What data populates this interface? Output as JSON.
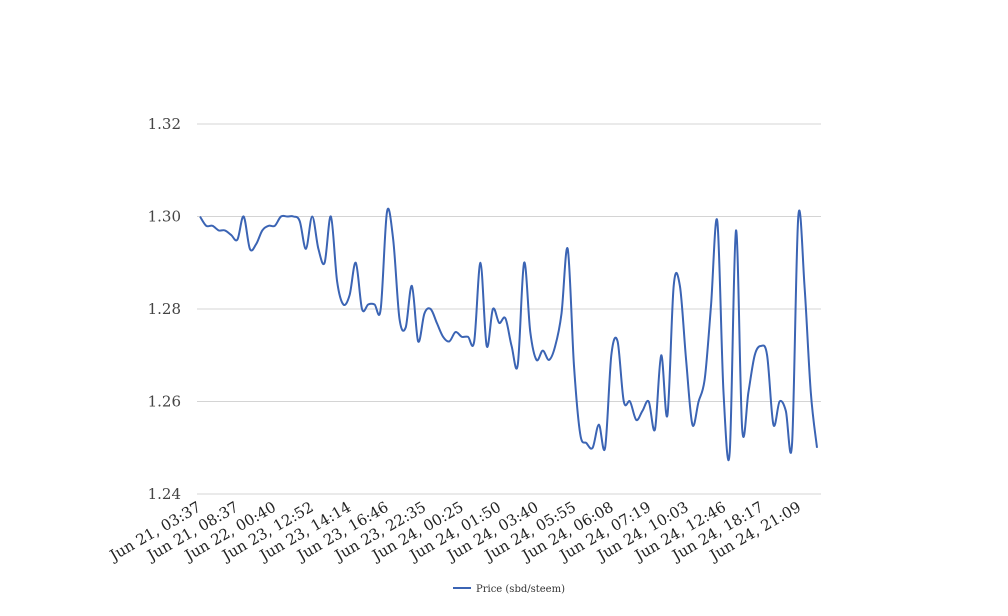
{
  "chart_data": {
    "type": "line",
    "title": "",
    "xlabel": "",
    "ylabel": "",
    "ylim": [
      1.24,
      1.32
    ],
    "yticks": [
      "1.32",
      "1.30",
      "1.28",
      "1.26",
      "1.24"
    ],
    "ytick_values": [
      1.32,
      1.3,
      1.28,
      1.26,
      1.24
    ],
    "xtick_labels": [
      "Jun 21, 03:37",
      "Jun 21, 08:37",
      "Jun 22, 00:40",
      "Jun 23, 12:52",
      "Jun 23, 14:14",
      "Jun 23, 16:46",
      "Jun 23, 22:35",
      "Jun 24, 00:25",
      "Jun 24, 01:50",
      "Jun 24, 03:40",
      "Jun 24, 05:55",
      "Jun 24, 06:08",
      "Jun 24, 07:19",
      "Jun 24, 10:03",
      "Jun 24, 12:46",
      "Jun 24, 18:17",
      "Jun 24, 21:09"
    ],
    "grid": true,
    "legend_position": "bottom",
    "series": [
      {
        "name": "Price (sbd/steem)",
        "color": "#3b64b4",
        "values": [
          1.3,
          1.298,
          1.298,
          1.297,
          1.297,
          1.296,
          1.295,
          1.3,
          1.293,
          1.294,
          1.297,
          1.298,
          1.298,
          1.3,
          1.3,
          1.3,
          1.299,
          1.293,
          1.3,
          1.293,
          1.29,
          1.3,
          1.286,
          1.281,
          1.283,
          1.29,
          1.28,
          1.281,
          1.281,
          1.28,
          1.301,
          1.295,
          1.278,
          1.276,
          1.285,
          1.273,
          1.279,
          1.28,
          1.277,
          1.274,
          1.273,
          1.275,
          1.274,
          1.274,
          1.273,
          1.29,
          1.272,
          1.28,
          1.277,
          1.278,
          1.272,
          1.268,
          1.29,
          1.275,
          1.269,
          1.271,
          1.269,
          1.272,
          1.279,
          1.293,
          1.268,
          1.253,
          1.251,
          1.25,
          1.255,
          1.25,
          1.27,
          1.273,
          1.26,
          1.26,
          1.256,
          1.258,
          1.26,
          1.254,
          1.27,
          1.257,
          1.285,
          1.285,
          1.269,
          1.255,
          1.26,
          1.265,
          1.281,
          1.299,
          1.262,
          1.249,
          1.297,
          1.254,
          1.262,
          1.27,
          1.272,
          1.27,
          1.255,
          1.26,
          1.258,
          1.251,
          1.3,
          1.285,
          1.262,
          1.25
        ]
      }
    ]
  }
}
